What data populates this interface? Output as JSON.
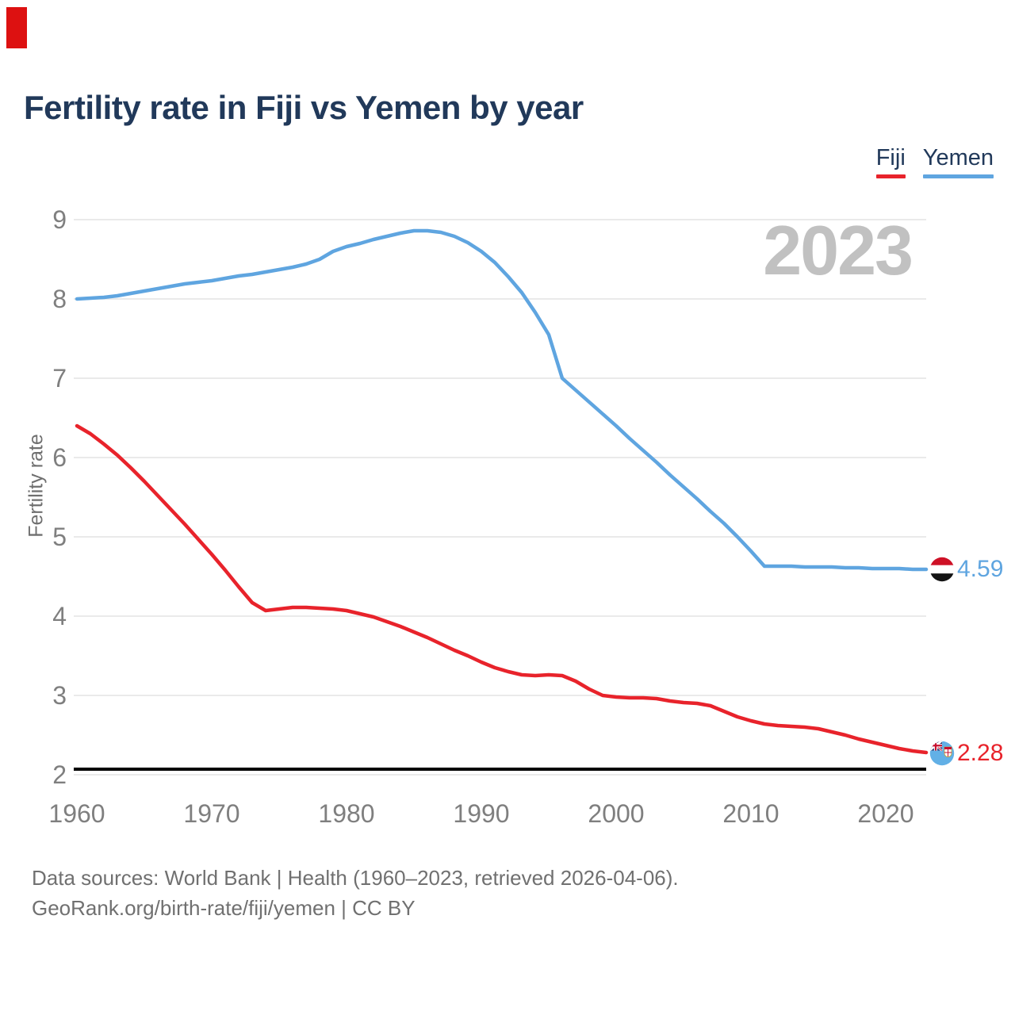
{
  "header": {
    "title": "Fertility rate in Fiji vs Yemen by year"
  },
  "legend": [
    {
      "label": "Fiji",
      "color": "#e8232b"
    },
    {
      "label": "Yemen",
      "color": "#5fa5e0"
    }
  ],
  "watermark_year": "2023",
  "y_axis": {
    "label": "Fertility rate"
  },
  "end_markers": [
    {
      "series": "Yemen",
      "icon": "yemen-flag-icon",
      "value_label": "4.59"
    },
    {
      "series": "Fiji",
      "icon": "fiji-flag-icon",
      "value_label": "2.28"
    }
  ],
  "footer": {
    "line1": "Data sources: World Bank | Health (1960–2023, retrieved 2026-04-06).",
    "line2": "GeoRank.org/birth-rate/fiji/yemen | CC BY"
  },
  "chart_data": {
    "type": "line",
    "title": "Fertility rate in Fiji vs Yemen by year",
    "xlabel": "",
    "ylabel": "Fertility rate",
    "x_start": 1960,
    "x_end": 2023,
    "ylim": [
      2,
      9
    ],
    "yticks": [
      2,
      3,
      4,
      5,
      6,
      7,
      8,
      9
    ],
    "xticks": [
      1960,
      1970,
      1980,
      1990,
      2000,
      2010,
      2020
    ],
    "grid": "horizontal",
    "legend_position": "top-right",
    "baseline_axis_color": "#000000",
    "series": [
      {
        "name": "Fiji",
        "color": "#e8232b",
        "end_label": "2.28",
        "values": [
          6.4,
          6.3,
          6.17,
          6.03,
          5.87,
          5.7,
          5.52,
          5.34,
          5.16,
          4.97,
          4.78,
          4.58,
          4.37,
          4.17,
          4.07,
          4.09,
          4.11,
          4.11,
          4.1,
          4.09,
          4.07,
          4.03,
          3.99,
          3.93,
          3.87,
          3.8,
          3.73,
          3.65,
          3.57,
          3.5,
          3.42,
          3.35,
          3.3,
          3.26,
          3.25,
          3.26,
          3.25,
          3.18,
          3.08,
          3.0,
          2.98,
          2.97,
          2.97,
          2.96,
          2.93,
          2.91,
          2.9,
          2.87,
          2.8,
          2.73,
          2.68,
          2.64,
          2.62,
          2.61,
          2.6,
          2.58,
          2.54,
          2.5,
          2.45,
          2.41,
          2.37,
          2.33,
          2.3,
          2.28
        ]
      },
      {
        "name": "Yemen",
        "color": "#5fa5e0",
        "end_label": "4.59",
        "values": [
          8.0,
          8.01,
          8.02,
          8.04,
          8.07,
          8.1,
          8.13,
          8.16,
          8.19,
          8.21,
          8.23,
          8.26,
          8.29,
          8.31,
          8.34,
          8.37,
          8.4,
          8.44,
          8.5,
          8.6,
          8.66,
          8.7,
          8.75,
          8.79,
          8.83,
          8.86,
          8.86,
          8.84,
          8.79,
          8.71,
          8.6,
          8.46,
          8.28,
          8.08,
          7.83,
          7.55,
          7.0,
          6.85,
          6.7,
          6.55,
          6.4,
          6.24,
          6.09,
          5.94,
          5.78,
          5.63,
          5.48,
          5.32,
          5.17,
          5.0,
          4.82,
          4.63,
          4.63,
          4.63,
          4.62,
          4.62,
          4.62,
          4.61,
          4.61,
          4.6,
          4.6,
          4.6,
          4.59,
          4.59
        ]
      }
    ]
  }
}
